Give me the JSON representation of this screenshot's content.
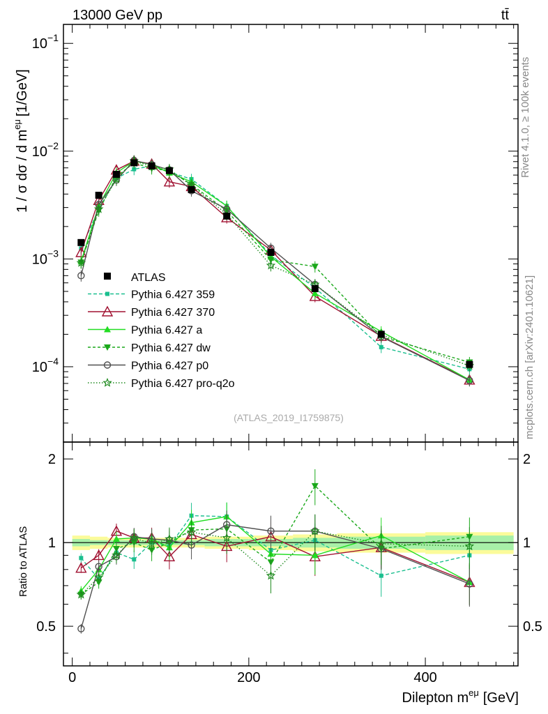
{
  "header": {
    "left": "13000 GeV pp",
    "right": "tt̄"
  },
  "side_text": {
    "rivet": "Rivet 4.1.0, ≥ 100k events",
    "mcplots": "mcplots.cern.ch [arXiv:2401.10621]"
  },
  "analysis_label": "(ATLAS_2019_I1759875)",
  "chart_data": {
    "type": "line",
    "title": "13000 GeV pp",
    "xlabel": "Dilepton m^eμ [GeV]",
    "xlabel_main": "Dilepton m",
    "xlabel_sup": "eμ",
    "xlabel_unit": "[GeV]",
    "ylabel": "1 / σ dσ / d m^eμ [1/GeV]",
    "ylabel_main": "1 / σ  dσ / d m",
    "ylabel_sup": "eμ",
    "ylabel_unit": "[1/GeV]",
    "ratio_ylabel": "Ratio to ATLAS",
    "xlim": [
      -10,
      505
    ],
    "ylim": [
      2e-05,
      0.15
    ],
    "yscale": "log",
    "ratio_ylim": [
      0.36,
      2.3
    ],
    "x_ticks": [
      "0",
      "200",
      "400"
    ],
    "ratio_ticks": [
      "0.5",
      "1",
      "2"
    ],
    "y_ticks": [
      {
        "base": "10",
        "exp": "−1"
      },
      {
        "base": "10",
        "exp": "−2"
      },
      {
        "base": "10",
        "exp": "−3"
      },
      {
        "base": "10",
        "exp": "−4"
      }
    ],
    "bins": [
      [
        0,
        20
      ],
      [
        20,
        40
      ],
      [
        40,
        60
      ],
      [
        60,
        80
      ],
      [
        80,
        100
      ],
      [
        100,
        120
      ],
      [
        120,
        150
      ],
      [
        150,
        200
      ],
      [
        200,
        250
      ],
      [
        250,
        300
      ],
      [
        300,
        400
      ],
      [
        400,
        500
      ]
    ],
    "x": [
      10,
      30,
      50,
      70,
      90,
      110,
      135,
      175,
      225,
      275,
      350,
      450
    ],
    "data": {
      "name": "ATLAS",
      "values": [
        0.00142,
        0.0039,
        0.0061,
        0.0078,
        0.0073,
        0.0066,
        0.0044,
        0.0025,
        0.00115,
        0.00053,
        0.0002,
        0.000105
      ],
      "ratio_band_stat": [
        0.03,
        0.02,
        0.02,
        0.02,
        0.02,
        0.02,
        0.02,
        0.03,
        0.03,
        0.04,
        0.05,
        0.06
      ],
      "ratio_band_tot": [
        0.06,
        0.05,
        0.04,
        0.04,
        0.04,
        0.04,
        0.04,
        0.05,
        0.06,
        0.07,
        0.08,
        0.09
      ]
    },
    "series": [
      {
        "name": "Pythia 6.427 359",
        "color": "#1bbf8f",
        "dash": "5,3",
        "marker": "square",
        "values": [
          0.00125,
          0.0029,
          0.0056,
          0.0068,
          0.0073,
          0.0064,
          0.0055,
          0.0031,
          0.00108,
          0.00054,
          0.000152,
          9.5e-05
        ],
        "ratio": [
          0.88,
          0.74,
          0.92,
          0.87,
          1.0,
          0.97,
          1.25,
          1.24,
          0.94,
          1.02,
          0.76,
          0.9
        ]
      },
      {
        "name": "Pythia 6.427 370",
        "color": "#a01030",
        "dash": "",
        "marker": "triangle-open",
        "values": [
          0.00115,
          0.0035,
          0.0067,
          0.0081,
          0.0076,
          0.0052,
          0.0047,
          0.00242,
          0.00121,
          0.00045,
          0.000192,
          7.55e-05
        ],
        "ratio": [
          0.81,
          0.9,
          1.1,
          1.04,
          1.04,
          0.89,
          1.07,
          0.97,
          1.05,
          0.89,
          0.96,
          0.72
        ]
      },
      {
        "name": "Pythia 6.427 a",
        "color": "#22dd22",
        "dash": "",
        "marker": "triangle",
        "values": [
          0.00095,
          0.0031,
          0.0063,
          0.0081,
          0.0075,
          0.0063,
          0.0052,
          0.0031,
          0.00105,
          0.00048,
          0.000212,
          7.55e-05
        ],
        "ratio": [
          0.67,
          0.8,
          1.03,
          1.04,
          1.03,
          0.96,
          1.18,
          1.24,
          0.91,
          0.9,
          1.06,
          0.72
        ]
      },
      {
        "name": "Pythia 6.427 dw",
        "color": "#1aa81a",
        "dash": "4,3",
        "marker": "triangle-down",
        "values": [
          0.00093,
          0.0028,
          0.0058,
          0.0078,
          0.0069,
          0.0066,
          0.0049,
          0.0028,
          0.00098,
          0.00085,
          0.00019,
          0.00011
        ],
        "ratio": [
          0.65,
          0.72,
          0.95,
          1.0,
          0.94,
          1.0,
          1.11,
          1.12,
          0.85,
          1.6,
          0.95,
          1.05
        ]
      },
      {
        "name": "Pythia 6.427 p0",
        "color": "#505050",
        "dash": "",
        "marker": "circle-open",
        "values": [
          0.0007,
          0.0032,
          0.0054,
          0.0082,
          0.0075,
          0.0067,
          0.0043,
          0.0029,
          0.00126,
          0.00058,
          0.00019,
          7.45e-05
        ],
        "ratio": [
          0.49,
          0.82,
          0.89,
          1.05,
          1.03,
          1.02,
          0.98,
          1.16,
          1.1,
          1.1,
          0.95,
          0.71
        ]
      },
      {
        "name": "Pythia 6.427 pro-q2o",
        "color": "#1f8a1f",
        "dash": "1.5,2.5",
        "marker": "star-open",
        "values": [
          0.00092,
          0.0029,
          0.0055,
          0.0081,
          0.0072,
          0.0068,
          0.0048,
          0.0026,
          0.00087,
          0.00058,
          0.000198,
          0.000102
        ],
        "ratio": [
          0.65,
          0.75,
          0.9,
          1.04,
          0.99,
          1.03,
          1.09,
          1.04,
          0.76,
          1.1,
          0.99,
          0.97
        ]
      }
    ],
    "legend_position": "middle-left"
  }
}
